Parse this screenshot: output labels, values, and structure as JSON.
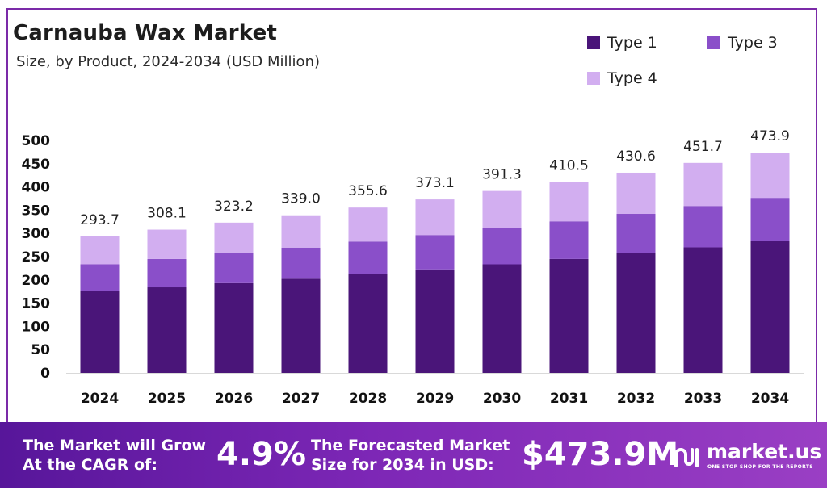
{
  "header": {
    "title": "Carnauba Wax Market",
    "subtitle": "Size, by Product, 2024-2034 (USD Million)"
  },
  "legend": [
    {
      "label": "Type 1",
      "color": "#4a1579"
    },
    {
      "label": "Type 3",
      "color": "#8a4fc9"
    },
    {
      "label": "Type 4",
      "color": "#d2aef0"
    }
  ],
  "chart_data": {
    "type": "bar",
    "stacked": true,
    "title": "Carnauba Wax Market",
    "subtitle": "Size, by Product, 2024-2034 (USD Million)",
    "xlabel": "",
    "ylabel": "",
    "ylim": [
      0,
      500
    ],
    "yticks": [
      0,
      50,
      100,
      150,
      200,
      250,
      300,
      350,
      400,
      450,
      500
    ],
    "categories": [
      "2024",
      "2025",
      "2026",
      "2027",
      "2028",
      "2029",
      "2030",
      "2031",
      "2032",
      "2033",
      "2034"
    ],
    "series": [
      {
        "name": "Type 1",
        "color": "#4a1579",
        "values": [
          175.5,
          184.0,
          193.0,
          202.5,
          212.0,
          222.5,
          233.5,
          245.0,
          257.0,
          270.0,
          283.5
        ]
      },
      {
        "name": "Type 3",
        "color": "#8a4fc9",
        "values": [
          58.0,
          61.0,
          64.0,
          67.0,
          70.5,
          74.0,
          77.5,
          81.0,
          85.0,
          89.0,
          93.0
        ]
      },
      {
        "name": "Type 4",
        "color": "#d2aef0",
        "values": [
          60.2,
          63.1,
          66.2,
          69.5,
          73.1,
          76.6,
          80.3,
          84.5,
          88.6,
          92.7,
          97.4
        ]
      }
    ],
    "totals": [
      "293.7",
      "308.1",
      "323.2",
      "339.0",
      "355.6",
      "373.1",
      "391.3",
      "410.5",
      "430.6",
      "451.7",
      "473.9"
    ],
    "legend_position": "top-right",
    "grid": false
  },
  "banner": {
    "cagr_text_line1": "The Market will Grow",
    "cagr_text_line2": "At the CAGR of:",
    "cagr_value": "4.9%",
    "forecast_text_line1": "The Forecasted Market",
    "forecast_text_line2": "Size for 2034 in USD:",
    "forecast_value": "$473.9M",
    "brand_name": "market.us",
    "brand_tagline": "ONE STOP SHOP FOR THE REPORTS",
    "brand_icon": "market-us-logo-icon"
  }
}
